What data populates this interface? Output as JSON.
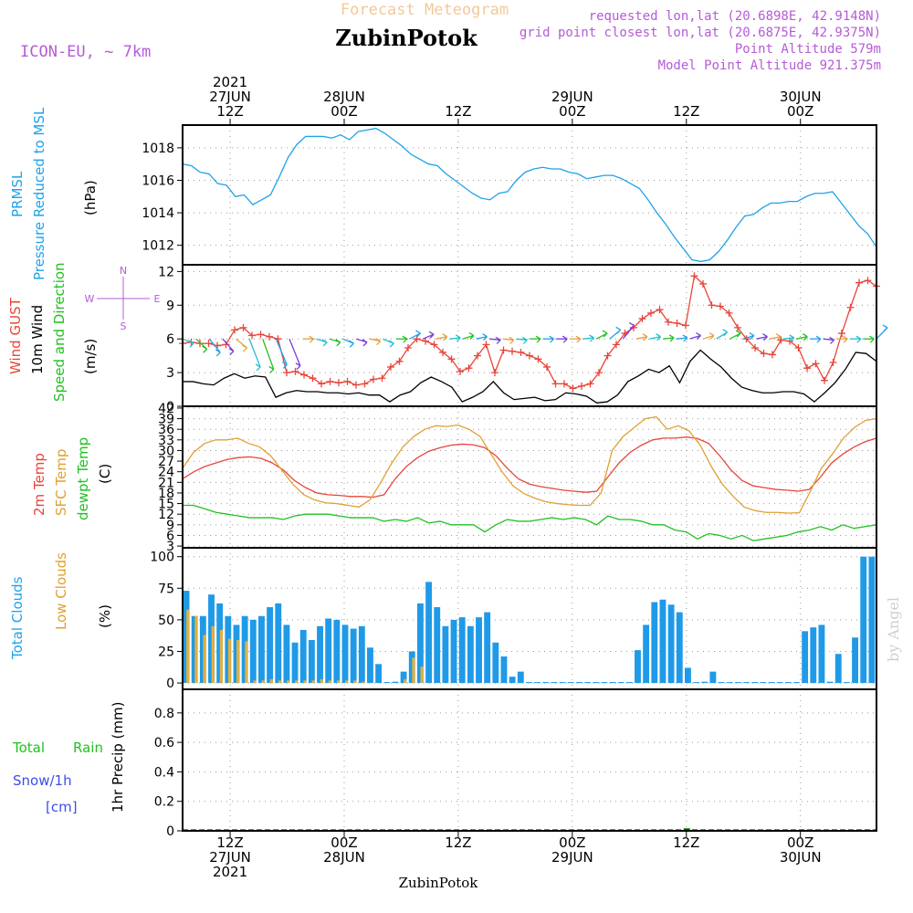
{
  "header": {
    "title": "Forecast Meteogram",
    "location": "ZubinPotok",
    "model": "ICON-EU, ~ 7km",
    "requested": "requested lon,lat (20.6898E, 42.9148N)",
    "closest": "grid point closest lon,lat (20.6875E, 42.9375N)",
    "point_altitude": "Point Altitude 579m",
    "model_altitude": "Model Point Altitude 921.375m",
    "watermark": "by Angel",
    "footer_location": "ZubinPotok"
  },
  "time_axis": {
    "start_hour_offset": 0,
    "end_hour_offset": 73,
    "top_labels": [
      {
        "hour": 5,
        "lines": [
          "2021",
          "27JUN",
          "12Z"
        ]
      },
      {
        "hour": 17,
        "lines": [
          "28JUN",
          "00Z"
        ]
      },
      {
        "hour": 29,
        "lines": [
          "12Z"
        ]
      },
      {
        "hour": 41,
        "lines": [
          "29JUN",
          "00Z"
        ]
      },
      {
        "hour": 53,
        "lines": [
          "12Z"
        ]
      },
      {
        "hour": 65,
        "lines": [
          "30JUN",
          "00Z"
        ]
      }
    ],
    "bottom_labels": [
      {
        "hour": 5,
        "lines": [
          "12Z",
          "27JUN",
          "2021"
        ]
      },
      {
        "hour": 17,
        "lines": [
          "00Z",
          "28JUN"
        ]
      },
      {
        "hour": 29,
        "lines": [
          "12Z"
        ]
      },
      {
        "hour": 41,
        "lines": [
          "00Z",
          "29JUN"
        ]
      },
      {
        "hour": 53,
        "lines": [
          "12Z"
        ]
      },
      {
        "hour": 65,
        "lines": [
          "00Z",
          "30JUN"
        ]
      }
    ]
  },
  "chart_data": [
    {
      "type": "line",
      "panel": "pressure",
      "ylabel_lines": [
        "PRMSL",
        "Pressure Reduced to MSL"
      ],
      "unit": "(hPa)",
      "yticks": [
        1012,
        1014,
        1016,
        1018
      ],
      "ylim": [
        1010.8,
        1019.4
      ],
      "series": [
        {
          "name": "PRMSL",
          "color": "#1fa2e8",
          "values": [
            1017.0,
            1016.9,
            1016.5,
            1016.4,
            1015.8,
            1015.7,
            1015.0,
            1015.1,
            1014.5,
            1014.8,
            1015.1,
            1016.2,
            1017.4,
            1018.2,
            1018.7,
            1018.7,
            1018.7,
            1018.6,
            1018.8,
            1018.5,
            1019.0,
            1019.1,
            1019.2,
            1018.9,
            1018.5,
            1018.1,
            1017.6,
            1017.3,
            1017.0,
            1016.9,
            1016.4,
            1016.0,
            1015.6,
            1015.2,
            1014.9,
            1014.8,
            1015.2,
            1015.3,
            1016.0,
            1016.5,
            1016.7,
            1016.8,
            1016.7,
            1016.7,
            1016.5,
            1016.4,
            1016.1,
            1016.2,
            1016.3,
            1016.3,
            1016.1,
            1015.8,
            1015.5,
            1014.8,
            1014.0,
            1013.3,
            1012.5,
            1011.8,
            1011.1,
            1011.0,
            1011.1,
            1011.6,
            1012.3,
            1013.1,
            1013.8,
            1013.9,
            1014.3,
            1014.6,
            1014.6,
            1014.7,
            1014.7,
            1015.0,
            1015.2,
            1015.2,
            1015.3,
            1014.6,
            1013.9,
            1013.2,
            1012.7,
            1011.9
          ]
        }
      ]
    },
    {
      "type": "line",
      "panel": "wind",
      "ylabel_lines": [
        "Wind GUST",
        "10m Wind",
        "Speed and Direction"
      ],
      "unit": "(m/s)",
      "compass": {
        "n": "N",
        "s": "S",
        "w": "W",
        "e": "E"
      },
      "yticks": [
        0,
        3,
        6,
        9,
        12
      ],
      "ylim": [
        0,
        12.6
      ],
      "arrow_baseline": 6,
      "series": [
        {
          "name": "Wind GUST",
          "color": "#e8453a",
          "markers": true,
          "values": [
            5.6,
            5.7,
            5.6,
            5.6,
            5.4,
            5.5,
            6.8,
            7.0,
            6.3,
            6.4,
            6.2,
            6.0,
            3.0,
            3.1,
            2.8,
            2.5,
            2.0,
            2.2,
            2.1,
            2.2,
            1.9,
            2.0,
            2.4,
            2.5,
            3.5,
            4.0,
            5.2,
            6.0,
            5.8,
            5.5,
            4.8,
            4.2,
            3.1,
            3.4,
            4.5,
            5.5,
            3.0,
            5.0,
            4.9,
            4.8,
            4.5,
            4.2,
            3.5,
            2.0,
            2.0,
            1.6,
            1.8,
            2.0,
            3.0,
            4.5,
            5.5,
            6.5,
            7.0,
            7.8,
            8.3,
            8.6,
            7.5,
            7.4,
            7.2,
            11.6,
            10.9,
            9.0,
            8.9,
            8.3,
            7.0,
            6.0,
            5.2,
            4.7,
            4.6,
            5.9,
            5.8,
            5.2,
            3.4,
            3.8,
            2.3,
            3.9,
            6.5,
            8.8,
            11.0,
            11.2,
            10.7
          ]
        },
        {
          "name": "10m Wind",
          "color": "#000000",
          "values": [
            2.2,
            2.2,
            2.0,
            1.9,
            2.5,
            2.9,
            2.5,
            2.7,
            2.6,
            0.8,
            1.2,
            1.4,
            1.3,
            1.3,
            1.2,
            1.2,
            1.1,
            1.2,
            1.0,
            1.0,
            0.4,
            1.0,
            1.3,
            2.1,
            2.6,
            2.2,
            1.7,
            0.4,
            0.8,
            1.3,
            2.2,
            1.2,
            0.6,
            0.7,
            0.8,
            0.5,
            0.6,
            1.2,
            1.1,
            0.9,
            0.3,
            0.4,
            1.0,
            2.2,
            2.7,
            3.3,
            3.0,
            3.6,
            2.1,
            4.0,
            5.0,
            4.2,
            3.5,
            2.5,
            1.7,
            1.4,
            1.2,
            1.2,
            1.3,
            1.3,
            1.1,
            0.4,
            1.2,
            2.1,
            3.3,
            4.8,
            4.7,
            4.0
          ]
        },
        {
          "name": "Wind Arrows",
          "color": "#1fa2e8",
          "segment_colors": [
            "#1fbfd0",
            "#22c022",
            "#1fa2e8",
            "#7a3cd8",
            "#e8a03a"
          ],
          "values": [
            5.6,
            5.1,
            4.8,
            4.9,
            5.2,
            3.5,
            3.3,
            3.7,
            3.6,
            6.0,
            5.7,
            5.7,
            5.6,
            5.7,
            5.8,
            5.6,
            6.0,
            6.5,
            6.4,
            6.2,
            6.1,
            6.3,
            6.2,
            5.9,
            5.9,
            5.9,
            6.0,
            6.0,
            6.0,
            6.0,
            6.1,
            6.5,
            6.8,
            7.2,
            6.2,
            6.2,
            6.1,
            6.1,
            6.3,
            6.3,
            6.6,
            6.5,
            6.3,
            6.2,
            6.2,
            6.1,
            6.2,
            6.0,
            5.9,
            6.0,
            6.0,
            6.0,
            7.0
          ]
        }
      ]
    },
    {
      "type": "line",
      "panel": "temperature",
      "ylabel_lines": [
        "2m Temp",
        "SFC Temp",
        "dewpt Temp"
      ],
      "unit": "(C)",
      "yticks": [
        3,
        6,
        9,
        12,
        15,
        18,
        21,
        24,
        27,
        30,
        33,
        36,
        39,
        42
      ],
      "ylim": [
        2.5,
        42.5
      ],
      "series": [
        {
          "name": "2m Temp",
          "color": "#e8453a",
          "values": [
            22.0,
            24.0,
            25.5,
            26.5,
            27.5,
            28.0,
            28.2,
            27.8,
            26.5,
            24.5,
            21.5,
            19.5,
            18.0,
            17.5,
            17.3,
            17.0,
            17.0,
            16.8,
            17.5,
            22.0,
            25.5,
            28.0,
            29.8,
            30.8,
            31.5,
            31.8,
            31.6,
            30.8,
            28.5,
            25.0,
            22.0,
            20.5,
            19.8,
            19.3,
            18.8,
            18.5,
            18.2,
            18.5,
            22.5,
            26.5,
            29.5,
            31.5,
            33.0,
            33.5,
            33.5,
            33.8,
            33.4,
            32.0,
            28.5,
            24.5,
            21.5,
            20.0,
            19.5,
            19.0,
            18.8,
            18.5,
            19.0,
            22.5,
            26.5,
            29.0,
            31.0,
            32.5,
            33.5
          ]
        },
        {
          "name": "SFC Temp",
          "color": "#e0a030",
          "values": [
            25.0,
            29.5,
            32.0,
            33.0,
            33.0,
            33.5,
            32.0,
            31.0,
            28.5,
            24.5,
            20.5,
            17.5,
            16.0,
            15.2,
            15.0,
            14.5,
            14.0,
            16.0,
            21.0,
            26.5,
            31.0,
            34.0,
            36.0,
            37.0,
            36.8,
            37.2,
            36.0,
            34.0,
            29.0,
            24.0,
            20.0,
            17.8,
            16.5,
            15.5,
            15.0,
            14.7,
            14.5,
            14.5,
            18.0,
            30.0,
            34.0,
            36.5,
            39.0,
            39.5,
            36.0,
            37.0,
            35.5,
            31.5,
            25.5,
            20.5,
            17.0,
            14.0,
            13.0,
            12.5,
            12.5,
            12.3,
            12.4,
            18.5,
            25.0,
            29.0,
            33.5,
            36.5,
            38.5,
            39.0
          ]
        },
        {
          "name": "dewpt Temp",
          "color": "#22c022",
          "values": [
            14.5,
            14.5,
            13.5,
            12.5,
            12.0,
            11.5,
            11.0,
            11.0,
            11.0,
            10.5,
            11.5,
            12.0,
            12.0,
            12.0,
            11.5,
            11.0,
            11.0,
            11.0,
            10.0,
            10.5,
            10.0,
            11.0,
            9.5,
            10.0,
            9.0,
            9.0,
            9.0,
            7.0,
            9.0,
            10.5,
            10.0,
            10.0,
            10.5,
            11.0,
            10.5,
            11.0,
            10.5,
            9.0,
            11.5,
            10.5,
            10.5,
            10.0,
            9.0,
            9.0,
            7.5,
            7.0,
            5.0,
            6.5,
            6.0,
            5.0,
            6.0,
            4.5,
            5.0,
            5.5,
            6.0,
            7.0,
            7.5,
            8.5,
            7.5,
            9.0,
            8.0,
            8.5,
            9.0
          ]
        }
      ]
    },
    {
      "type": "bar",
      "panel": "clouds",
      "ylabel_lines": [
        "Total Clouds",
        "Low Clouds"
      ],
      "unit": "(%)",
      "yticks": [
        0,
        25,
        50,
        75,
        100
      ],
      "ylim": [
        -5,
        107
      ],
      "series": [
        {
          "name": "Total Clouds",
          "color": "#1f9ae8",
          "values": [
            73,
            53,
            53,
            70,
            63,
            53,
            46,
            53,
            50,
            53,
            60,
            63,
            46,
            32,
            42,
            34,
            45,
            51,
            50,
            46,
            43,
            45,
            28,
            15,
            0,
            1,
            9,
            25,
            63,
            80,
            60,
            45,
            50,
            52,
            45,
            52,
            56,
            32,
            21,
            5,
            9,
            0,
            0,
            0,
            0,
            0,
            0,
            0,
            0,
            0,
            0,
            0,
            0,
            0,
            26,
            46,
            64,
            66,
            62,
            56,
            12,
            0,
            1,
            9,
            0,
            0,
            0,
            0,
            0,
            0,
            0,
            0,
            0,
            0,
            41,
            44,
            46,
            1,
            23,
            0,
            36,
            100,
            100
          ]
        },
        {
          "name": "Low Clouds",
          "color": "#e0b040",
          "values": [
            58,
            53,
            38,
            45,
            42,
            35,
            34,
            33,
            2,
            2,
            3,
            2,
            2,
            2,
            2,
            2,
            3,
            2,
            2,
            2,
            2,
            1,
            0,
            0,
            0,
            0,
            3,
            20,
            13,
            0,
            0,
            0,
            0,
            0,
            0,
            0,
            0,
            0,
            0,
            0,
            0,
            0,
            0,
            0,
            0,
            0,
            0,
            0,
            0,
            0,
            0,
            0,
            0,
            0,
            0,
            0,
            0,
            0,
            0,
            0,
            0,
            0,
            0,
            0,
            0,
            0,
            0,
            0,
            0,
            0,
            0,
            0,
            0,
            0,
            0,
            0,
            0,
            0,
            0,
            0,
            0,
            0,
            0
          ]
        }
      ]
    },
    {
      "type": "bar",
      "panel": "precip",
      "ylabel": "1hr Precip (mm)",
      "legend_labels": {
        "total": "Total",
        "rain": "Rain",
        "snow": "Snow/1h",
        "cm": "[cm]"
      },
      "yticks": [
        0,
        0.2,
        0.4,
        0.6,
        0.8
      ],
      "ytick_labels": [
        "0",
        "0.2",
        "0.4",
        "0.6",
        "0.8"
      ],
      "ylim": [
        0,
        0.96
      ],
      "series": [
        {
          "name": "Total Rain",
          "color": "#22a022",
          "hours": [
            53
          ],
          "values": [
            0.01
          ]
        }
      ]
    }
  ]
}
